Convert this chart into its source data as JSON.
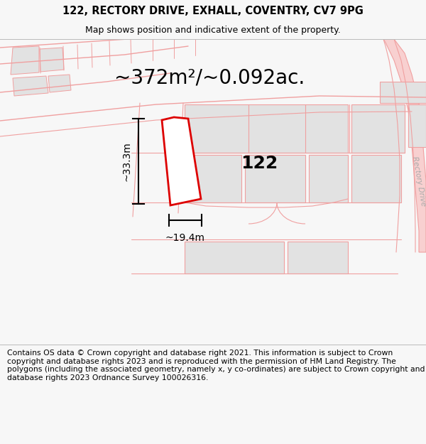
{
  "title": "122, RECTORY DRIVE, EXHALL, COVENTRY, CV7 9PG",
  "subtitle": "Map shows position and indicative extent of the property.",
  "area_text": "~372m²/~0.092ac.",
  "dim_width": "~19.4m",
  "dim_height": "~33.3m",
  "label_122": "122",
  "footer": "Contains OS data © Crown copyright and database right 2021. This information is subject to Crown copyright and database rights 2023 and is reproduced with the permission of HM Land Registry. The polygons (including the associated geometry, namely x, y co-ordinates) are subject to Crown copyright and database rights 2023 Ordnance Survey 100026316.",
  "bg_color": "#f7f7f7",
  "map_bg": "#ffffff",
  "highlight_color": "#dd0000",
  "building_fill": "#e2e2e2",
  "road_line_color": "#f0a0a0",
  "title_fontsize": 10.5,
  "subtitle_fontsize": 9,
  "area_fontsize": 20,
  "label_fontsize": 18,
  "footer_fontsize": 7.8,
  "dim_fontsize": 10
}
